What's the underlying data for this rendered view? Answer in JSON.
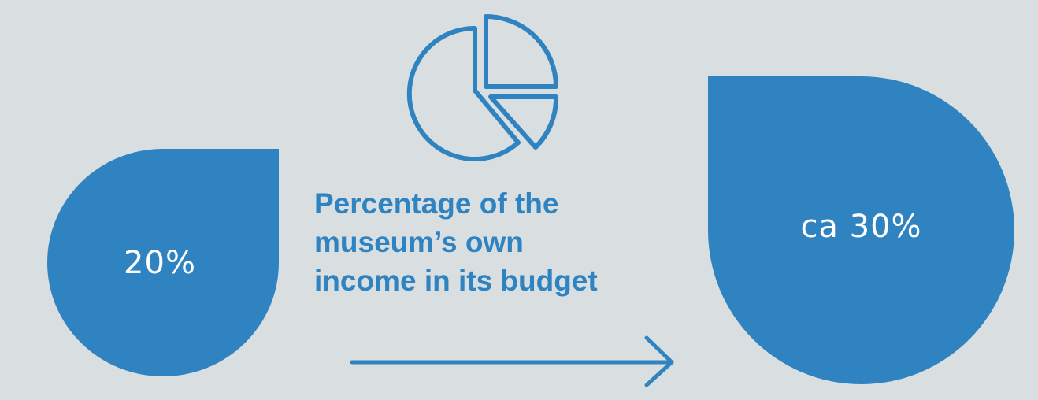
{
  "left_value": "20%",
  "right_value": "ca 30%",
  "title_lines": [
    "Percentage of the",
    "museum’s own",
    "income in its budget"
  ],
  "icons": {
    "top": "pie-chart-icon",
    "bottom": "arrow-right-icon"
  },
  "colors": {
    "background": "#d9dfe0",
    "accent": "#3083c1",
    "value_text": "#ffffff"
  }
}
